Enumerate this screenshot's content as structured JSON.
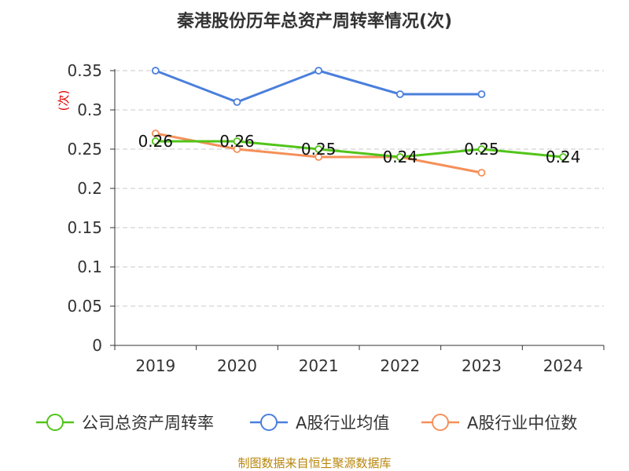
{
  "chart_data": {
    "type": "line",
    "title": "秦港股份历年总资产周转率情况(次)",
    "ylabel": "(次)",
    "xlabel": "",
    "categories": [
      "2019",
      "2020",
      "2021",
      "2022",
      "2023",
      "2024"
    ],
    "ylim": [
      0,
      0.35
    ],
    "yticks": [
      "0",
      "0.05",
      "0.1",
      "0.15",
      "0.2",
      "0.25",
      "0.3",
      "0.35"
    ],
    "ytick_values": [
      0,
      0.05,
      0.1,
      0.15,
      0.2,
      0.25,
      0.3,
      0.35
    ],
    "grid": true,
    "legend_position": "bottom",
    "series": [
      {
        "name": "公司总资产周转率",
        "color": "#52c41a",
        "values": [
          0.26,
          0.26,
          0.25,
          0.24,
          0.25,
          0.24
        ],
        "labels": [
          "0.26",
          "0.26",
          "0.25",
          "0.24",
          "0.25",
          "0.24"
        ]
      },
      {
        "name": "A股行业均值",
        "color": "#4a7fdc",
        "values": [
          0.35,
          0.31,
          0.35,
          0.32,
          0.32,
          null
        ]
      },
      {
        "name": "A股行业中位数",
        "color": "#f5905a",
        "values": [
          0.27,
          0.25,
          0.24,
          0.24,
          0.22,
          null
        ]
      }
    ]
  },
  "source": "制图数据来自恒生聚源数据库"
}
